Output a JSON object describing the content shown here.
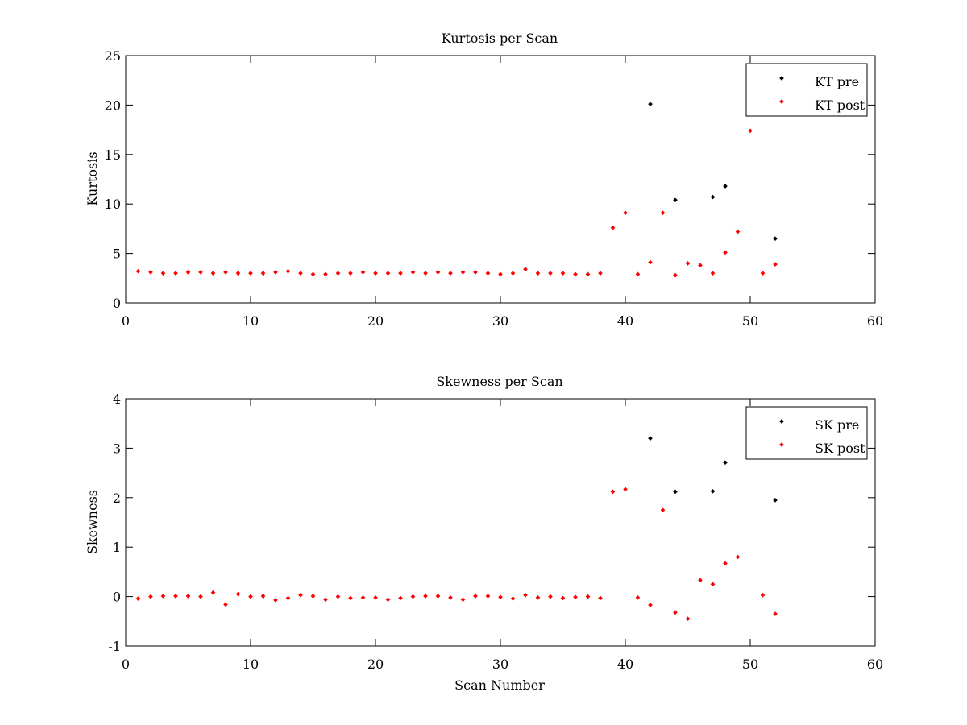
{
  "chart_data": [
    {
      "type": "scatter",
      "title": "Kurtosis per Scan",
      "xlabel": "",
      "ylabel": "Kurtosis",
      "xlim": [
        0,
        60
      ],
      "ylim": [
        0,
        25
      ],
      "xticks": [
        "0",
        "10",
        "20",
        "30",
        "40",
        "50",
        "60"
      ],
      "yticks": [
        "0",
        "5",
        "10",
        "15",
        "20",
        "25"
      ],
      "grid": false,
      "legend_position": "top-right",
      "series": [
        {
          "name": "KT pre",
          "color": "#000000",
          "points": [
            [
              42,
              20.1
            ],
            [
              44,
              10.4
            ],
            [
              47,
              10.7
            ],
            [
              48,
              11.8
            ],
            [
              52,
              6.5
            ]
          ]
        },
        {
          "name": "KT post",
          "color": "#ff0000",
          "points": [
            [
              1,
              3.2
            ],
            [
              2,
              3.1
            ],
            [
              3,
              3.0
            ],
            [
              4,
              3.0
            ],
            [
              5,
              3.1
            ],
            [
              6,
              3.1
            ],
            [
              7,
              3.0
            ],
            [
              8,
              3.1
            ],
            [
              9,
              3.0
            ],
            [
              10,
              3.0
            ],
            [
              11,
              3.0
            ],
            [
              12,
              3.1
            ],
            [
              13,
              3.2
            ],
            [
              14,
              3.0
            ],
            [
              15,
              2.9
            ],
            [
              16,
              2.9
            ],
            [
              17,
              3.0
            ],
            [
              18,
              3.0
            ],
            [
              19,
              3.1
            ],
            [
              20,
              3.0
            ],
            [
              21,
              3.0
            ],
            [
              22,
              3.0
            ],
            [
              23,
              3.1
            ],
            [
              24,
              3.0
            ],
            [
              25,
              3.1
            ],
            [
              26,
              3.0
            ],
            [
              27,
              3.1
            ],
            [
              28,
              3.1
            ],
            [
              29,
              3.0
            ],
            [
              30,
              2.9
            ],
            [
              31,
              3.0
            ],
            [
              32,
              3.4
            ],
            [
              33,
              3.0
            ],
            [
              34,
              3.0
            ],
            [
              35,
              3.0
            ],
            [
              36,
              2.9
            ],
            [
              37,
              2.9
            ],
            [
              38,
              3.0
            ],
            [
              39,
              7.6
            ],
            [
              40,
              9.1
            ],
            [
              41,
              2.9
            ],
            [
              42,
              4.1
            ],
            [
              43,
              9.1
            ],
            [
              44,
              2.8
            ],
            [
              45,
              4.0
            ],
            [
              46,
              3.8
            ],
            [
              47,
              3.0
            ],
            [
              48,
              5.1
            ],
            [
              49,
              7.2
            ],
            [
              50,
              17.4
            ],
            [
              51,
              3.0
            ],
            [
              52,
              3.9
            ]
          ]
        }
      ]
    },
    {
      "type": "scatter",
      "title": "Skewness per Scan",
      "xlabel": "Scan Number",
      "ylabel": "Skewness",
      "xlim": [
        0,
        60
      ],
      "ylim": [
        -1,
        4
      ],
      "xticks": [
        "0",
        "10",
        "20",
        "30",
        "40",
        "50",
        "60"
      ],
      "yticks": [
        "-1",
        "0",
        "1",
        "2",
        "3",
        "4"
      ],
      "grid": false,
      "legend_position": "top-right",
      "series": [
        {
          "name": "SK pre",
          "color": "#000000",
          "points": [
            [
              42,
              3.2
            ],
            [
              44,
              2.12
            ],
            [
              47,
              2.13
            ],
            [
              48,
              2.71
            ],
            [
              52,
              1.95
            ]
          ]
        },
        {
          "name": "SK post",
          "color": "#ff0000",
          "points": [
            [
              1,
              -0.04
            ],
            [
              2,
              0.0
            ],
            [
              3,
              0.01
            ],
            [
              4,
              0.01
            ],
            [
              5,
              0.01
            ],
            [
              6,
              0.0
            ],
            [
              7,
              0.08
            ],
            [
              8,
              -0.16
            ],
            [
              9,
              0.05
            ],
            [
              10,
              0.0
            ],
            [
              11,
              0.01
            ],
            [
              12,
              -0.07
            ],
            [
              13,
              -0.03
            ],
            [
              14,
              0.03
            ],
            [
              15,
              0.01
            ],
            [
              16,
              -0.06
            ],
            [
              17,
              0.0
            ],
            [
              18,
              -0.03
            ],
            [
              19,
              -0.02
            ],
            [
              20,
              -0.02
            ],
            [
              21,
              -0.06
            ],
            [
              22,
              -0.03
            ],
            [
              23,
              0.0
            ],
            [
              24,
              0.01
            ],
            [
              25,
              0.01
            ],
            [
              26,
              -0.02
            ],
            [
              27,
              -0.06
            ],
            [
              28,
              0.01
            ],
            [
              29,
              0.01
            ],
            [
              30,
              -0.01
            ],
            [
              31,
              -0.04
            ],
            [
              32,
              0.03
            ],
            [
              33,
              -0.02
            ],
            [
              34,
              0.0
            ],
            [
              35,
              -0.03
            ],
            [
              36,
              -0.01
            ],
            [
              37,
              0.0
            ],
            [
              38,
              -0.03
            ],
            [
              39,
              2.12
            ],
            [
              40,
              2.17
            ],
            [
              41,
              -0.02
            ],
            [
              42,
              -0.17
            ],
            [
              43,
              1.75
            ],
            [
              44,
              -0.32
            ],
            [
              45,
              -0.45
            ],
            [
              46,
              0.33
            ],
            [
              47,
              0.25
            ],
            [
              48,
              0.67
            ],
            [
              49,
              0.8
            ],
            [
              51,
              0.03
            ],
            [
              52,
              -0.35
            ]
          ]
        }
      ]
    }
  ]
}
